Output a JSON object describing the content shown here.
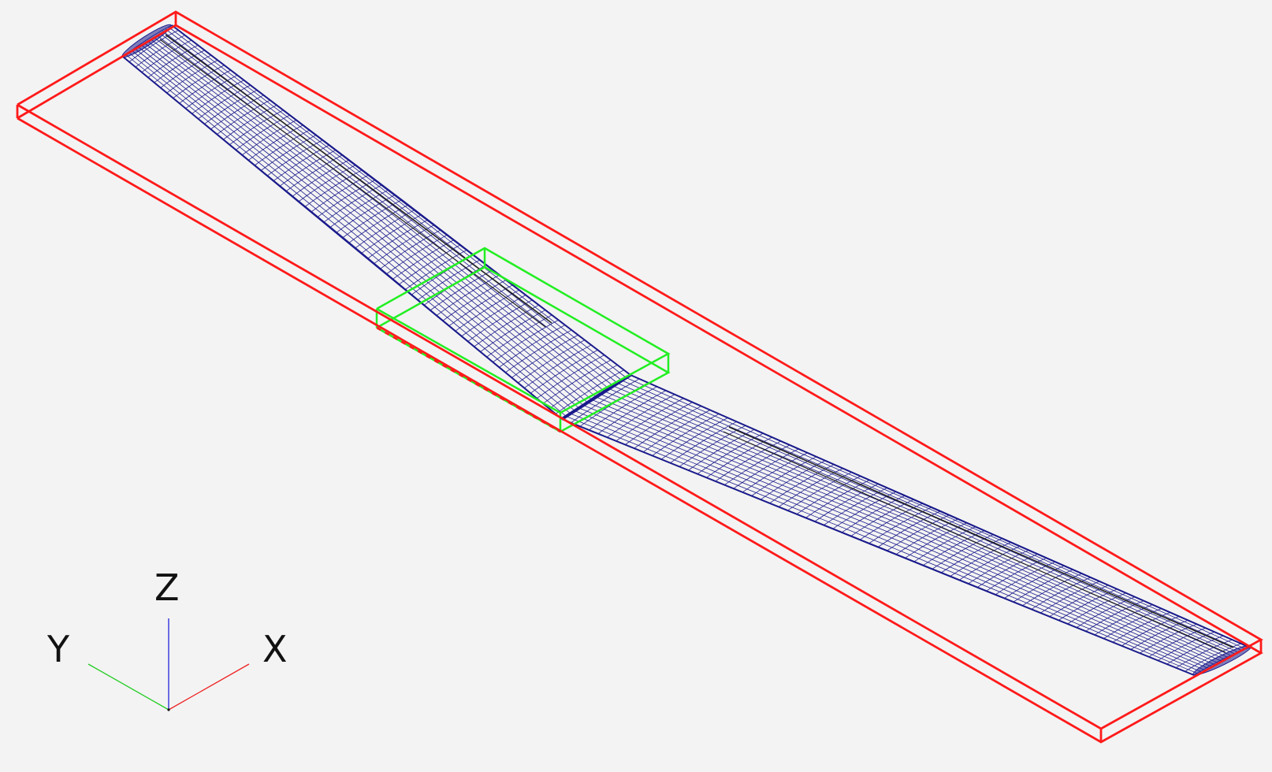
{
  "viewport": {
    "background": "#f3f3f3",
    "colors": {
      "wing_mesh": "#1a1a8c",
      "outer_bounding_box": "#ff1a1a",
      "center_bounding_box": "#22ee22",
      "spar_lines": "#222222",
      "axis_x": "#ee2222",
      "axis_y": "#22cc22",
      "axis_z": "#2222dd"
    }
  },
  "axis_triad": {
    "x_label": "X",
    "y_label": "Y",
    "z_label": "Z"
  }
}
